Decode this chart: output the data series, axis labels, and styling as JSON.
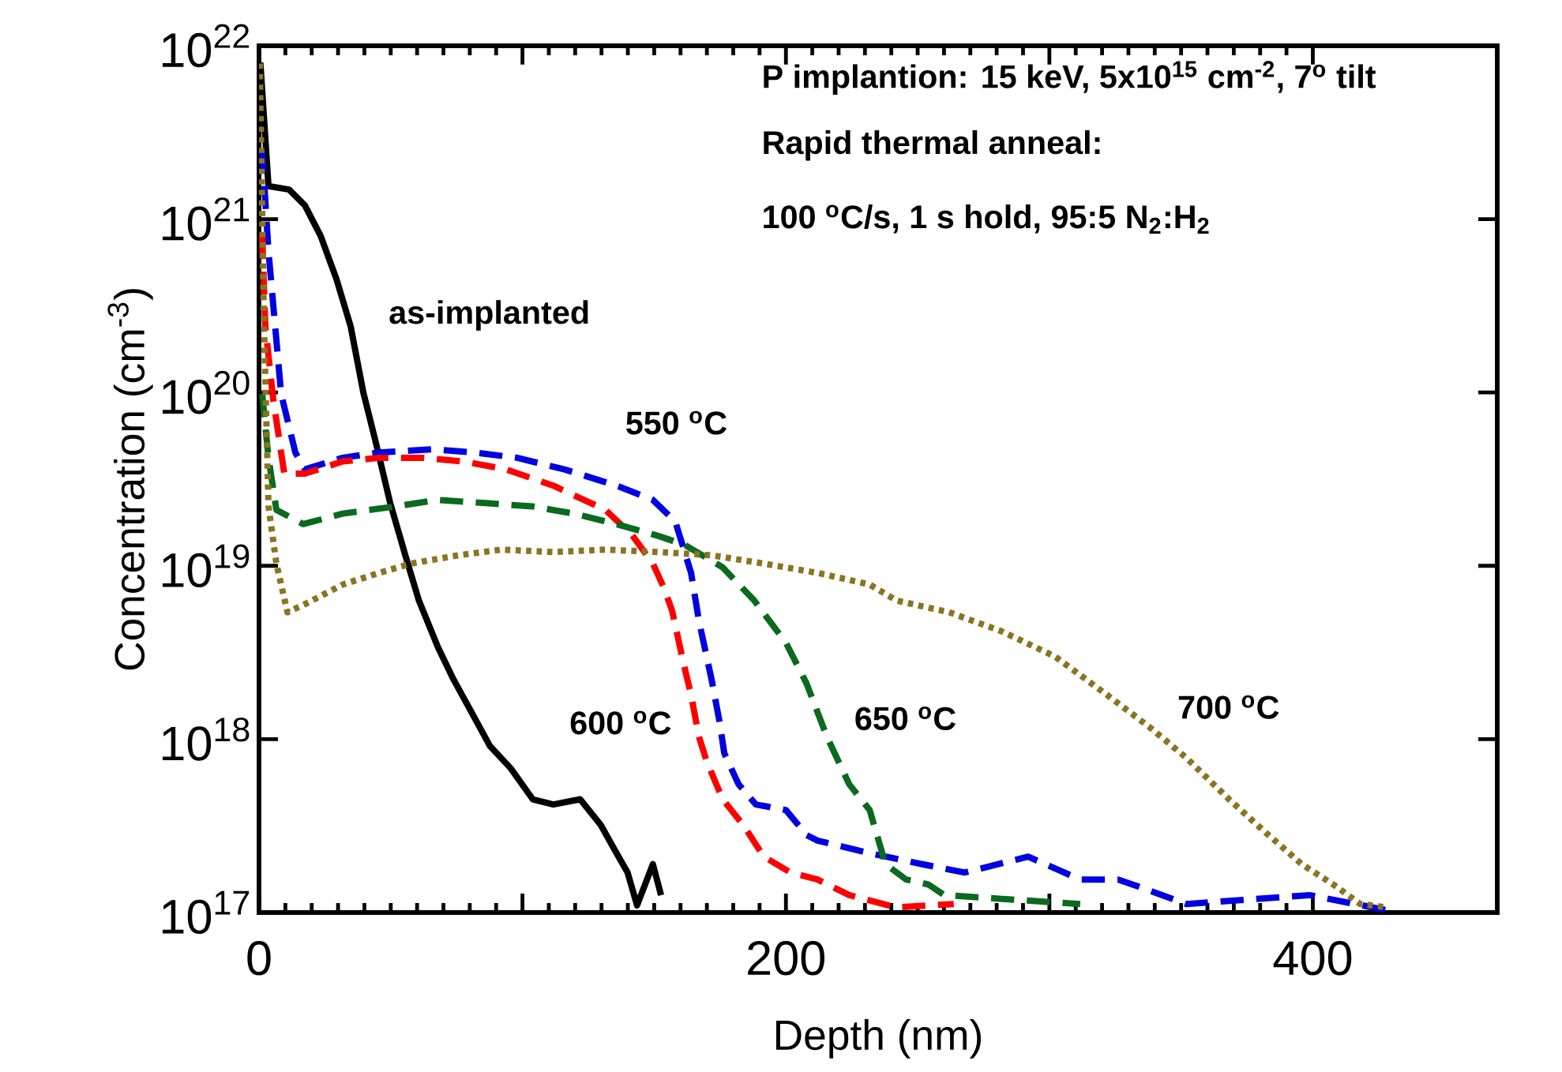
{
  "chart_data": {
    "type": "line",
    "xlabel": "Depth (nm)",
    "ylabel": "Concentration (cm$^{-3}$)",
    "log": "y",
    "xlim": [
      0,
      470
    ],
    "ylim": [
      1e+17,
      1e+22
    ],
    "xticks": [
      0,
      {
        "value": 100,
        "label": null
      },
      200,
      {
        "value": 300,
        "label": null
      },
      400
    ],
    "yticks": [
      {
        "value": 1e+17,
        "label": "10$^{17}$"
      },
      {
        "value": 1e+18,
        "label": "10$^{18}$"
      },
      {
        "value": 1e+19,
        "label": "10$^{19}$"
      },
      {
        "value": 1e+20,
        "label": "10$^{20}$"
      },
      {
        "value": 1e+21,
        "label": "10$^{21}$"
      },
      {
        "value": 1e+22,
        "label": "10$^{22}$"
      }
    ],
    "grid": false,
    "marker": "none",
    "series": [
      {
        "color": "#000000",
        "line_style": "solid",
        "x": [
          0.5,
          3.6,
          11.4,
          17.4,
          23.4,
          29.4,
          34.8,
          39.6,
          44.4,
          49.8,
          55.9,
          60.7,
          67.9,
          73.9,
          79.9,
          87.7,
          95.5,
          103.9,
          111.7,
          121.9,
          129.7,
          135.7,
          139.9,
          143.5,
          149.5,
          152.6
        ],
        "values": [
          8e+21,
          1.55e+21,
          1.48e+21,
          1.2e+21,
          8e+20,
          4.5e+20,
          2.4e+20,
          1e+20,
          5.1e+19,
          2.3e+19,
          1.1e+19,
          6.3e+18,
          3.4e+18,
          2.2e+18,
          1.5e+18,
          9.1e+17,
          6.8e+17,
          4.5e+17,
          4.2e+17,
          4.5e+17,
          3.2e+17,
          2.2e+17,
          1.7e+17,
          1.1e+17,
          1.9e+17,
          1.26e+17
        ]
      },
      {
        "color": "#0000e0",
        "line_style": "dashed",
        "x": [
          1.2,
          3.6,
          8.4,
          13.8,
          17.4,
          31.8,
          45.6,
          65.5,
          81.7,
          97.9,
          115.9,
          135.7,
          149.5,
          158.0,
          164.0,
          167.0,
          171.8,
          174.8,
          176.6,
          182.0,
          188.6,
          200.0,
          207.8,
          212.0,
          231.8,
          251.7,
          267.9,
          291.9,
          311.7,
          326.1,
          335.7,
          352.0,
          398.8,
          428.2
        ],
        "values": [
          2.5e+21,
          6.5e+20,
          9.8e+19,
          4.5e+19,
          3.6e+19,
          4.2e+19,
          4.5e+19,
          4.7e+19,
          4.5e+19,
          4.2e+19,
          3.6e+19,
          2.9e+19,
          2.4e+19,
          1.8e+19,
          9.1e+18,
          4.8e+18,
          2.2e+18,
          1.26e+18,
          8.3e+17,
          5.5e+17,
          4.2e+17,
          3.9e+17,
          2.8e+17,
          2.6e+17,
          2.2e+17,
          1.9e+17,
          1.7e+17,
          2.1e+17,
          1.55e+17,
          1.55e+17,
          1.38e+17,
          1.12e+17,
          1.26e+17,
          1.03e+17
        ]
      },
      {
        "color": "#ff0000",
        "line_style": "dashed",
        "x": [
          1.2,
          2.4,
          5.4,
          9.6,
          17.4,
          31.8,
          45.6,
          61.9,
          77.5,
          93.7,
          111.7,
          131.5,
          141.7,
          149.5,
          153.8,
          156.8,
          161.0,
          164.0,
          167.0,
          170.0,
          176.0,
          183.8,
          191.6,
          201.8,
          212.0,
          224.0,
          242.0,
          263.7
        ],
        "values": [
          8e+20,
          2.4e+20,
          9.1e+19,
          3.4e+19,
          3.4e+19,
          4e+19,
          4.2e+19,
          4.2e+19,
          4e+19,
          3.6e+19,
          2.9e+19,
          2.1e+19,
          1.5e+19,
          1.03e+19,
          7.4e+18,
          5.5e+18,
          2.8e+18,
          1.8e+18,
          1.03e+18,
          7.4e+17,
          4.5e+17,
          3.2e+17,
          2.1e+17,
          1.7e+17,
          1.55e+17,
          1.26e+17,
          1.07e+17,
          1.12e+17
        ]
      },
      {
        "color": "#0a6a1e",
        "line_style": "dashed",
        "x": [
          1.2,
          3.6,
          6.6,
          16.8,
          31.8,
          51.7,
          67.9,
          85.9,
          103.9,
          119.5,
          135.7,
          152.0,
          161.6,
          176.0,
          188.0,
          200.0,
          207.8,
          215.6,
          224.0,
          231.8,
          237.8,
          245.6,
          254.1,
          260.1,
          311.7
        ],
        "values": [
          9.8e+19,
          4.2e+19,
          2.1e+19,
          1.74e+19,
          2e+19,
          2.2e+19,
          2.4e+19,
          2.3e+19,
          2.2e+19,
          2e+19,
          1.74e+19,
          1.48e+19,
          1.32e+19,
          9.8e+18,
          6.3e+18,
          3.6e+18,
          2.1e+18,
          1.03e+18,
          5.5e+17,
          3.9e+17,
          1.9e+17,
          1.55e+17,
          1.45e+17,
          1.26e+17,
          1.12e+17
        ]
      },
      {
        "color": "#8b7320",
        "line_style": "dotted",
        "x": [
          0.3,
          1.8,
          3.6,
          6.6,
          10.8,
          17.4,
          31.8,
          45.6,
          57.7,
          75.7,
          91.9,
          111.7,
          131.5,
          152.0,
          171.8,
          191.6,
          212.0,
          231.8,
          242.0,
          261.9,
          281.7,
          302.1,
          321.9,
          338.1,
          352.0,
          368.2,
          382.0,
          395.8,
          407.8,
          418.0,
          428.2
        ],
        "values": [
          7.9e+21,
          2.8e+20,
          2.2e+19,
          1.03e+19,
          5.4e+18,
          6e+18,
          7.8e+18,
          9.1e+18,
          1.03e+19,
          1.15e+19,
          1.24e+19,
          1.2e+19,
          1.24e+19,
          1.2e+19,
          1.15e+19,
          1.03e+19,
          9.1e+18,
          7.8e+18,
          6.3e+18,
          5.4e+18,
          4.2e+18,
          3e+18,
          1.8e+18,
          1.17e+18,
          7.8e+17,
          4.5e+17,
          2.9e+17,
          1.9e+17,
          1.45e+17,
          1.12e+17,
          1.07e+17
        ]
      }
    ],
    "annotations": [
      "as-implanted",
      "550 $^{o}$C",
      "600 $^{o}$C",
      "650 $^{o}$C",
      "700 $^{o}$C",
      "P implantion: 15 keV, 5x10$^{15}$ cm$^{-2}$, 7$^{o}$ tilt",
      "Rapid thermal anneal:",
      "100 $^{o}$C/s, 1 s hold, 95:5 N$_{2}$:H$_{2}$"
    ]
  }
}
